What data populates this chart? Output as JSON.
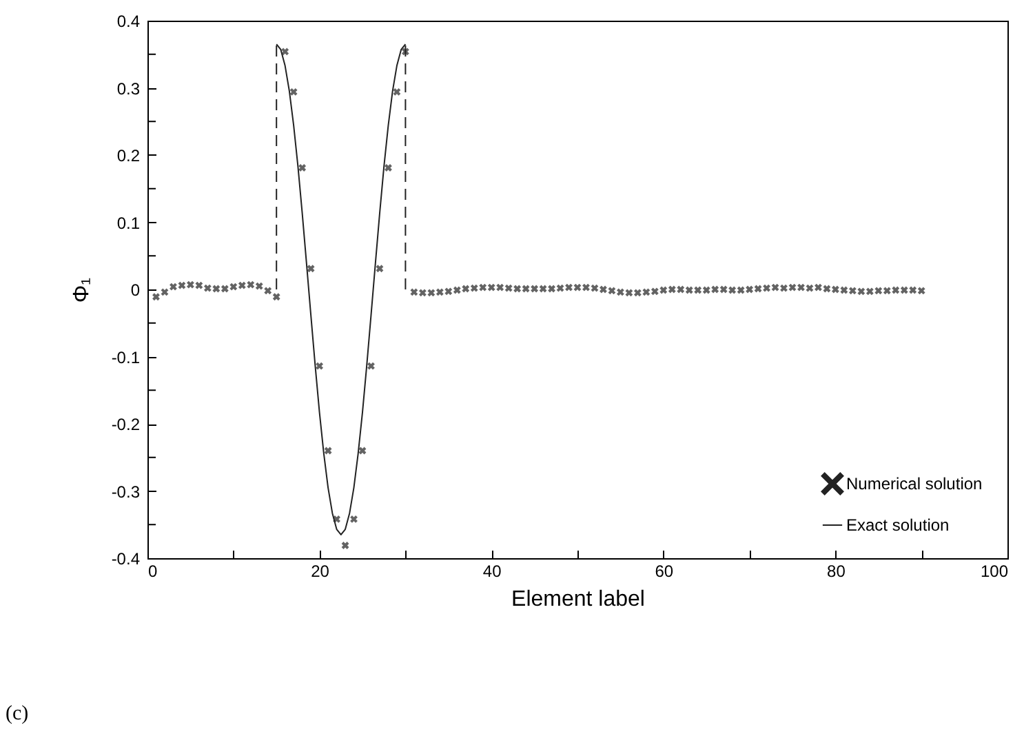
{
  "chart_data": {
    "type": "scatter",
    "xlabel": "Element label",
    "ylabel": "Φ₁",
    "annotations": [
      "(c)"
    ],
    "xlim": [
      0,
      100
    ],
    "xticks": [
      0,
      {
        "value": 10,
        "label": null
      },
      20,
      {
        "value": 30,
        "label": null
      },
      40,
      {
        "value": 50,
        "label": null
      },
      60,
      {
        "value": 70,
        "label": null
      },
      80,
      {
        "value": 90,
        "label": null
      },
      100
    ],
    "ylim": [
      -0.4,
      0.4
    ],
    "yticks": [
      -0.4,
      {
        "value": -0.35,
        "label": null
      },
      -0.3,
      {
        "value": -0.25,
        "label": null
      },
      -0.2,
      {
        "value": -0.15,
        "label": null
      },
      -0.1,
      {
        "value": -0.05,
        "label": null
      },
      0,
      {
        "value": 0.05,
        "label": null
      },
      0.1,
      {
        "value": 0.15,
        "label": null
      },
      0.2,
      {
        "value": 0.25,
        "label": null
      },
      0.3,
      {
        "value": 0.35,
        "label": null
      },
      0.4
    ],
    "grid": false,
    "legend": "bottom right",
    "series": [
      {
        "name": "Numerical solution",
        "marker": "cross",
        "color": "#222222",
        "x": [
          1,
          2,
          3,
          4,
          5,
          6,
          7,
          8,
          9,
          10,
          11,
          12,
          13,
          14,
          15,
          16,
          17,
          18,
          19,
          20,
          21,
          22,
          23,
          24,
          25,
          26,
          27,
          28,
          29,
          30,
          31,
          32,
          33,
          34,
          35,
          36,
          37,
          38,
          39,
          40,
          41,
          42,
          43,
          44,
          45,
          46,
          47,
          48,
          49,
          50,
          51,
          52,
          53,
          54,
          55,
          56,
          57,
          58,
          59,
          60,
          61,
          62,
          63,
          64,
          65,
          66,
          67,
          68,
          69,
          70,
          71,
          72,
          73,
          74,
          75,
          76,
          77,
          78,
          79,
          80,
          81,
          82,
          83,
          84,
          85,
          86,
          87,
          88,
          89,
          90
        ],
        "values": [
          -0.011,
          -0.004,
          0.004,
          0.006,
          0.007,
          0.006,
          0.002,
          0.001,
          0.001,
          0.004,
          0.006,
          0.007,
          0.005,
          -0.002,
          -0.011,
          0.354,
          0.294,
          0.181,
          0.031,
          -0.114,
          -0.24,
          -0.342,
          -0.381,
          -0.342,
          -0.24,
          -0.114,
          0.031,
          0.181,
          0.294,
          0.354,
          -0.004,
          -0.005,
          -0.005,
          -0.004,
          -0.003,
          -0.001,
          0.001,
          0.002,
          0.003,
          0.003,
          0.003,
          0.002,
          0.001,
          0.001,
          0.001,
          0.001,
          0.001,
          0.002,
          0.003,
          0.003,
          0.003,
          0.002,
          0,
          -0.002,
          -0.004,
          -0.005,
          -0.005,
          -0.004,
          -0.003,
          -0.001,
          0,
          0,
          -0.001,
          -0.001,
          -0.001,
          0,
          0,
          -0.001,
          -0.001,
          0,
          0.001,
          0.002,
          0.003,
          0.002,
          0.003,
          0.003,
          0.002,
          0.003,
          0.001,
          0,
          -0.001,
          -0.002,
          -0.003,
          -0.003,
          -0.002,
          -0.002,
          -0.001,
          -0.001,
          -0.001,
          -0.002
        ]
      },
      {
        "name": "Exact solution",
        "type": "line",
        "marker": "none",
        "line_style": "solid",
        "color": "#222222",
        "x": [
          15,
          15.5,
          16,
          16.5,
          17,
          17.5,
          18,
          18.5,
          19,
          19.5,
          20,
          20.5,
          21,
          21.5,
          22,
          22.5,
          23,
          23.5,
          24,
          24.5,
          25,
          25.5,
          26,
          26.5,
          27,
          27.5,
          28,
          28.5,
          29,
          29.5,
          30
        ],
        "values": [
          0.365,
          0.357,
          0.333,
          0.295,
          0.244,
          0.183,
          0.113,
          0.038,
          -0.038,
          -0.113,
          -0.183,
          -0.244,
          -0.295,
          -0.333,
          -0.357,
          -0.365,
          -0.357,
          -0.333,
          -0.295,
          -0.244,
          -0.183,
          -0.113,
          -0.038,
          0.038,
          0.113,
          0.183,
          0.244,
          0.295,
          0.333,
          0.357,
          0.365
        ]
      },
      {
        "type": "line",
        "marker": "none",
        "line_style": "dashed",
        "color": "#222222",
        "x": [
          15,
          15
        ],
        "values": [
          0,
          0.365
        ]
      },
      {
        "type": "line",
        "marker": "none",
        "line_style": "dashed",
        "color": "#222222",
        "x": [
          30,
          30
        ],
        "values": [
          0,
          0.365
        ]
      }
    ]
  }
}
